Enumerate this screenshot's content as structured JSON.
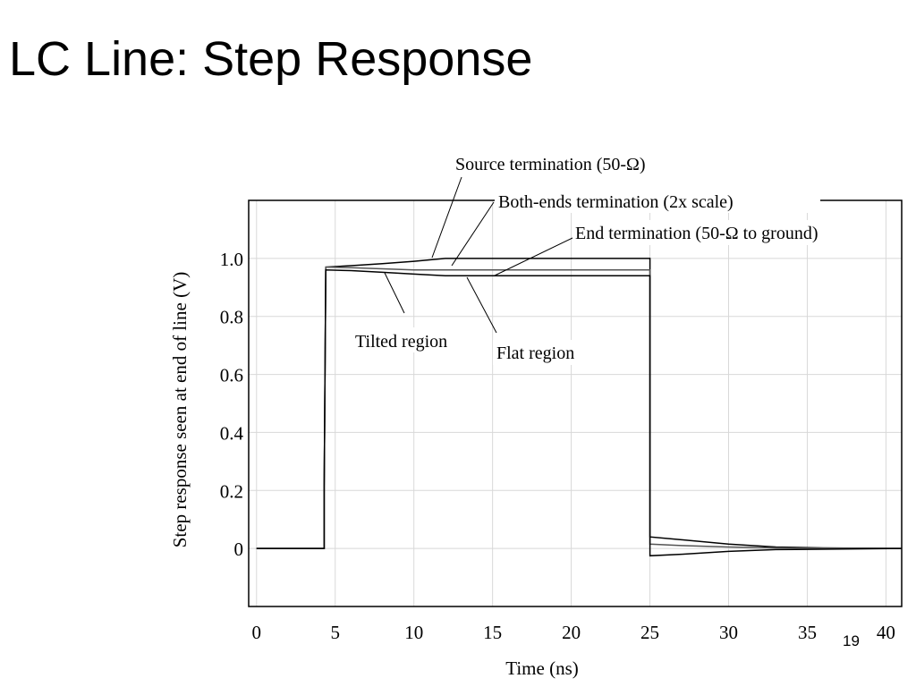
{
  "slide": {
    "title": "LC Line: Step Response",
    "page_number": "19"
  },
  "chart_data": {
    "type": "line",
    "title": "",
    "xlabel": "Time (ns)",
    "ylabel": "Step response seen at end of line  (V)",
    "xlim": [
      -0.5,
      41
    ],
    "ylim": [
      -0.2,
      1.2
    ],
    "x_ticks": [
      0,
      5,
      10,
      15,
      20,
      25,
      30,
      35,
      40
    ],
    "x_tick_labels": [
      "0",
      "5",
      "10",
      "15",
      "20",
      "25",
      "30",
      "35",
      "40"
    ],
    "y_ticks": [
      0,
      0.2,
      0.4,
      0.6,
      0.8,
      1.0
    ],
    "y_tick_labels": [
      "0",
      "0.2",
      "0.4",
      "0.6",
      "0.8",
      "1.0"
    ],
    "grid": true,
    "series": [
      {
        "name": "Source termination (50-Ω)",
        "color": "#000000",
        "points": [
          [
            0,
            0
          ],
          [
            4.3,
            0
          ],
          [
            4.3,
            0.21
          ],
          [
            4.4,
            0.97
          ],
          [
            6,
            0.975
          ],
          [
            8,
            0.982
          ],
          [
            10,
            0.99
          ],
          [
            12,
            1.0
          ],
          [
            25,
            1.0
          ],
          [
            25,
            0.04
          ],
          [
            27,
            0.03
          ],
          [
            30,
            0.015
          ],
          [
            33,
            0.005
          ],
          [
            36,
            0.002
          ],
          [
            41,
            0.0
          ]
        ]
      },
      {
        "name": "Both-ends termination (2x scale)",
        "color": "#555555",
        "points": [
          [
            0,
            0
          ],
          [
            4.3,
            0
          ],
          [
            4.3,
            0.21
          ],
          [
            4.4,
            0.97
          ],
          [
            6,
            0.968
          ],
          [
            8,
            0.964
          ],
          [
            10,
            0.96
          ],
          [
            12,
            0.96
          ],
          [
            25,
            0.96
          ],
          [
            25,
            0.015
          ],
          [
            27,
            0.01
          ],
          [
            30,
            0.005
          ],
          [
            33,
            0.002
          ],
          [
            41,
            0.0
          ]
        ]
      },
      {
        "name": "End termination (50-Ω to ground)",
        "color": "#000000",
        "points": [
          [
            0,
            0
          ],
          [
            4.3,
            0
          ],
          [
            4.3,
            0.21
          ],
          [
            4.4,
            0.96
          ],
          [
            6,
            0.958
          ],
          [
            8,
            0.952
          ],
          [
            10,
            0.946
          ],
          [
            12,
            0.94
          ],
          [
            25,
            0.94
          ],
          [
            25,
            -0.025
          ],
          [
            27,
            -0.02
          ],
          [
            30,
            -0.01
          ],
          [
            33,
            -0.004
          ],
          [
            41,
            0.0
          ]
        ]
      }
    ],
    "annotations": [
      {
        "text": "Source termination (50-Ω)",
        "target": [
          11.0,
          0.99
        ]
      },
      {
        "text": "Both-ends termination (2x scale)",
        "target": [
          12.0,
          0.96
        ]
      },
      {
        "text": "End termination (50-Ω to ground)",
        "target": [
          14.0,
          0.94
        ]
      },
      {
        "text": "Tilted region",
        "target": [
          8.0,
          0.95
        ]
      },
      {
        "text": "Flat region",
        "target": [
          14.5,
          0.94
        ]
      }
    ]
  }
}
